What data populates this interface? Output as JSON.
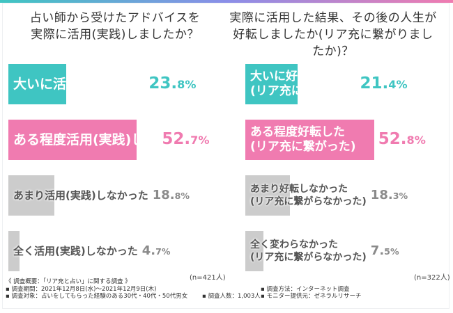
{
  "colors": {
    "teal": "#3fc5c2",
    "pink": "#f07bb0",
    "gray": "#cccccc",
    "text_dark": "#555555",
    "text_gray_pct": "#8a8a8a"
  },
  "chart_data": [
    {
      "type": "bar",
      "orientation": "horizontal",
      "title_lines": [
        "占い師から受けたアドバイスを",
        "実際に活用(実践)しましたか？"
      ],
      "categories": [
        [
          "大いに活用(実践)した"
        ],
        [
          "ある程度活用(実践)した"
        ],
        [
          "あまり活用(実践)しなかった"
        ],
        [
          "全く活用(実践)しなかった"
        ]
      ],
      "values": [
        23.8,
        52.7,
        18.8,
        4.7
      ],
      "value_labels": [
        {
          "int": "23.",
          "dec": "8",
          "unit": "%"
        },
        {
          "int": "52.",
          "dec": "7",
          "unit": "%"
        },
        {
          "int": "18.",
          "dec": "8",
          "unit": "%"
        },
        {
          "int": "4.",
          "dec": "7",
          "unit": "%"
        }
      ],
      "bar_styles": [
        "teal",
        "pink",
        "gray",
        "gray"
      ],
      "xlim": [
        0,
        100
      ],
      "note": "(n=421人)"
    },
    {
      "type": "bar",
      "orientation": "horizontal",
      "title_lines": [
        "実際に活用した結果、その後の人生が",
        "好転しましたか(リア充に繋がりましたか)？"
      ],
      "categories": [
        [
          "大いに好転した",
          "(リア充に繋がった)"
        ],
        [
          "ある程度好転した",
          "(リア充に繋がった)"
        ],
        [
          "あまり好転しなかった",
          "(リア充に繋がらなかった)"
        ],
        [
          "全く変わらなかった",
          "(リア充に繋がらなかった)"
        ]
      ],
      "values": [
        21.4,
        52.8,
        18.3,
        7.5
      ],
      "value_labels": [
        {
          "int": "21.",
          "dec": "4",
          "unit": "%"
        },
        {
          "int": "52.",
          "dec": "8",
          "unit": "%"
        },
        {
          "int": "18.",
          "dec": "3",
          "unit": "%"
        },
        {
          "int": "7.",
          "dec": "5",
          "unit": "%"
        }
      ],
      "bar_styles": [
        "teal",
        "pink",
        "gray",
        "gray"
      ],
      "xlim": [
        0,
        100
      ],
      "note": "(n=322人)"
    }
  ],
  "footer": {
    "heading": "《 調査概要：「リア充と占い」に関する調査 》",
    "period": "▪ 調査期間：2021年12月8日(水)～2021年12月9日(木)",
    "method": "▪ 調査方法：インターネット調査",
    "target": "▪ 調査対象：占いをしてもらった経験のある30代・40代・50代男女",
    "count": "▪ 調査人数：1,003人",
    "provider": "▪ モニター提供元：ゼネラルリサーチ"
  }
}
